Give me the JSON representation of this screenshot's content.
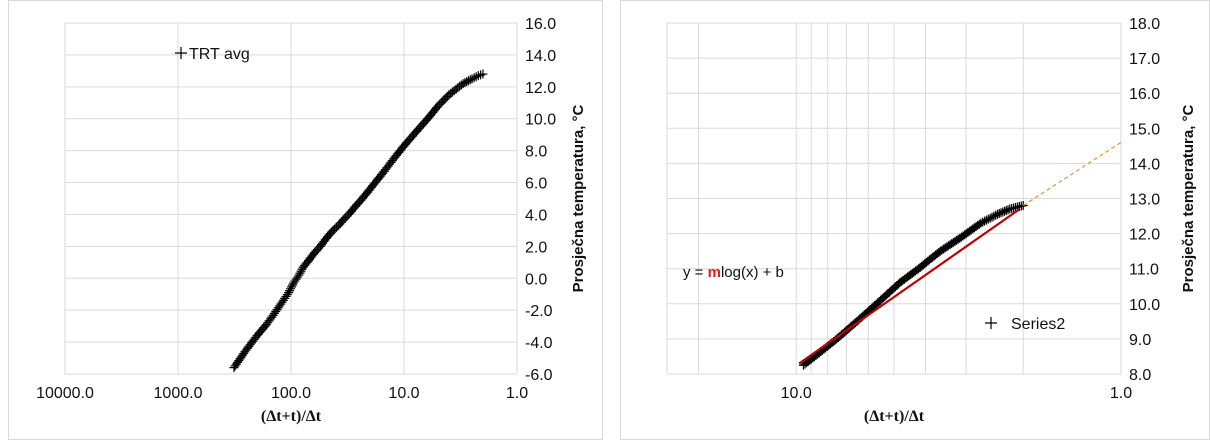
{
  "chart_data": [
    {
      "type": "scatter",
      "title": "",
      "xlabel": "(Δt+t)/Δt",
      "ylabel": "Prosječna temperatura, °C",
      "x_scale": "log",
      "x_reversed": true,
      "xlim": [
        1.0,
        10000.0
      ],
      "x_ticks": [
        "10000.0",
        "1000.0",
        "100.0",
        "10.0",
        "1.0"
      ],
      "ylim": [
        -6.0,
        16.0
      ],
      "y_ticks": [
        "-6.0",
        "-4.0",
        "-2.0",
        "0.0",
        "2.0",
        "4.0",
        "6.0",
        "8.0",
        "10.0",
        "12.0",
        "14.0",
        "16.0"
      ],
      "y_axis_side": "right",
      "grid": true,
      "legend": {
        "position": "top-left",
        "entries": [
          "TRT avg"
        ]
      },
      "series": [
        {
          "name": "TRT avg",
          "marker": "+",
          "color": "#000000",
          "points": [
            [
              320,
              -5.6
            ],
            [
              250,
              -4.5
            ],
            [
              200,
              -3.6
            ],
            [
              165,
              -2.9
            ],
            [
              140,
              -2.2
            ],
            [
              120,
              -1.5
            ],
            [
              105,
              -0.9
            ],
            [
              95,
              -0.3
            ],
            [
              85,
              0.2
            ],
            [
              78,
              0.7
            ],
            [
              70,
              1.1
            ],
            [
              62,
              1.6
            ],
            [
              55,
              2.0
            ],
            [
              50,
              2.4
            ],
            [
              45,
              2.8
            ],
            [
              41,
              3.1
            ],
            [
              37,
              3.4
            ],
            [
              34,
              3.7
            ],
            [
              30,
              4.1
            ],
            [
              27,
              4.5
            ],
            [
              24,
              4.9
            ],
            [
              21,
              5.4
            ],
            [
              18,
              6.0
            ],
            [
              15,
              6.7
            ],
            [
              12,
              7.6
            ],
            [
              10,
              8.3
            ],
            [
              8,
              9.1
            ],
            [
              6,
              10.1
            ],
            [
              5,
              10.8
            ],
            [
              4,
              11.5
            ],
            [
              3,
              12.2
            ],
            [
              2.5,
              12.5
            ],
            [
              2.2,
              12.7
            ],
            [
              2.0,
              12.8
            ]
          ]
        }
      ]
    },
    {
      "type": "scatter",
      "title": "",
      "xlabel": "(Δt+t)/Δt",
      "ylabel": "Prosječna temperatura, °C",
      "x_scale": "log",
      "x_reversed": true,
      "xlim": [
        1.0,
        25.0
      ],
      "x_ticks": [
        "10.0",
        "1.0"
      ],
      "ylim": [
        8.0,
        18.0
      ],
      "y_ticks": [
        "8.0",
        "9.0",
        "10.0",
        "11.0",
        "12.0",
        "13.0",
        "14.0",
        "15.0",
        "16.0",
        "17.0",
        "18.0"
      ],
      "y_axis_side": "right",
      "grid": true,
      "legend": {
        "position": "bottom-right",
        "entries": [
          "Series2"
        ]
      },
      "equation": {
        "prefix": "y = ",
        "coef": "m",
        "suffix": "log(x) + b"
      },
      "series": [
        {
          "name": "Series2",
          "marker": "+",
          "color": "#000000",
          "points": [
            [
              9.5,
              8.25
            ],
            [
              8.5,
              8.6
            ],
            [
              7.5,
              9.0
            ],
            [
              6.5,
              9.5
            ],
            [
              5.5,
              10.1
            ],
            [
              4.8,
              10.6
            ],
            [
              4.2,
              11.0
            ],
            [
              3.6,
              11.5
            ],
            [
              3.1,
              11.9
            ],
            [
              2.7,
              12.3
            ],
            [
              2.4,
              12.55
            ],
            [
              2.2,
              12.7
            ],
            [
              2.0,
              12.8
            ]
          ]
        }
      ],
      "trendline": {
        "color": "#c00000",
        "x_start": 9.8,
        "x_end": 2.05,
        "y_start": 8.3,
        "y_end": 12.7
      },
      "forecast": {
        "color": "#e8922a",
        "x_start": 2.0,
        "x_end": 1.0,
        "y_start": 12.8,
        "y_end": 14.6
      }
    }
  ]
}
